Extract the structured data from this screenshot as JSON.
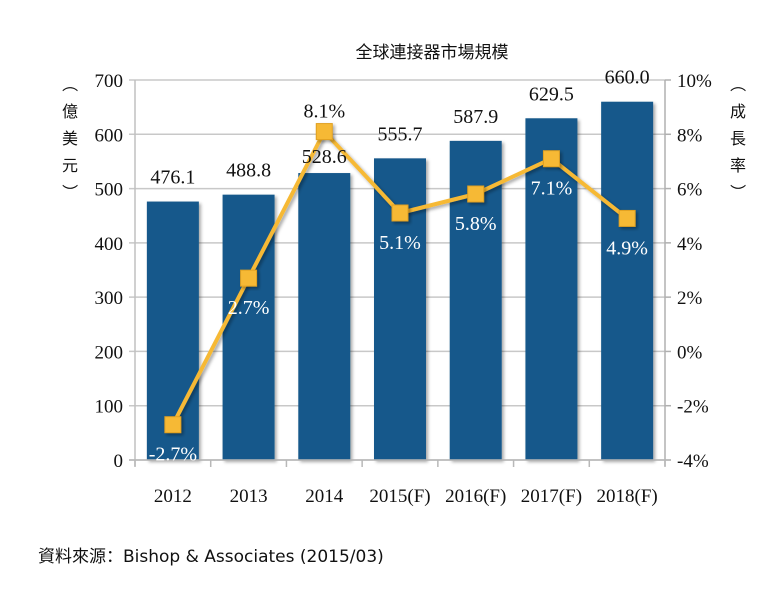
{
  "chart_data": {
    "type": "bar",
    "title": "全球連接器市場規模",
    "categories": [
      "2012",
      "2013",
      "2014",
      "2015(F)",
      "2016(F)",
      "2017(F)",
      "2018(F)"
    ],
    "series": [
      {
        "name": "市場規模",
        "type": "bar",
        "axis": "left",
        "values": [
          476.1,
          488.8,
          528.6,
          555.7,
          587.9,
          629.5,
          660.0
        ],
        "labels": [
          "476.1",
          "488.8",
          "528.6",
          "555.7",
          "587.9",
          "629.5",
          "660.0"
        ],
        "color": "#16598b"
      },
      {
        "name": "成長率",
        "type": "line",
        "axis": "right",
        "values": [
          -2.7,
          2.7,
          8.1,
          5.1,
          5.8,
          7.1,
          4.9
        ],
        "labels": [
          "-2.7%",
          "2.7%",
          "8.1%",
          "5.1%",
          "5.8%",
          "7.1%",
          "4.9%"
        ],
        "color": "#f6b935"
      }
    ],
    "ylabel_left": [
      "（",
      "億",
      "美",
      "元",
      "）"
    ],
    "ylabel_right": [
      "（",
      "成",
      "長",
      "率",
      "）"
    ],
    "ylim_left": [
      0,
      700
    ],
    "ylim_right": [
      -4,
      10
    ],
    "yticks_left": [
      "0",
      "100",
      "200",
      "300",
      "400",
      "500",
      "600",
      "700"
    ],
    "yticks_right": [
      "-4%",
      "-2%",
      "0%",
      "2%",
      "4%",
      "6%",
      "8%",
      "10%"
    ],
    "grid": true,
    "legend": "none"
  },
  "source": "資料來源：Bishop & Associates (2015/03)"
}
